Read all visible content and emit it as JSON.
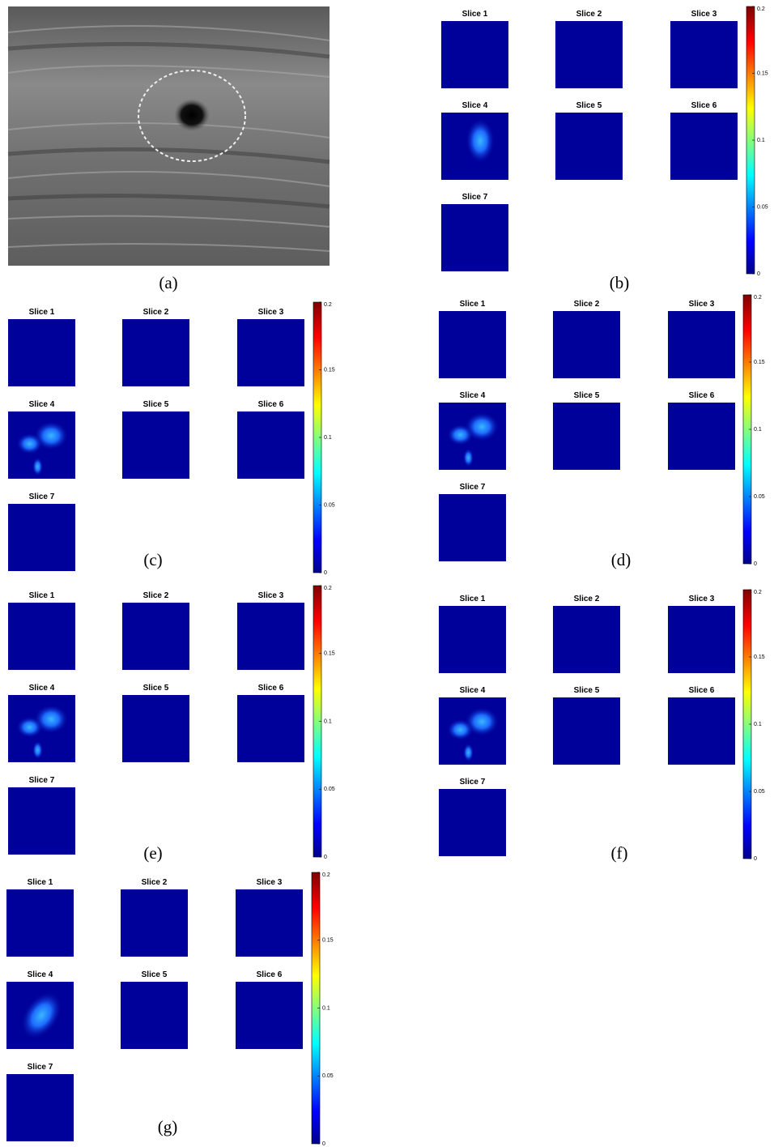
{
  "figure": {
    "panels": [
      {
        "label": "(a)"
      },
      {
        "label": "(b)",
        "slices": [
          "Slice 1",
          "Slice 2",
          "Slice 3",
          "Slice 4",
          "Slice 5",
          "Slice 6",
          "Slice 7"
        ],
        "colorbar": {
          "lim": [
            0,
            0.2
          ],
          "ticks": [
            0,
            0.05,
            0.1,
            0.15,
            0.2
          ]
        }
      },
      {
        "label": "(c)",
        "slices": [
          "Slice 1",
          "Slice 2",
          "Slice 3",
          "Slice 4",
          "Slice 5",
          "Slice 6",
          "Slice 7"
        ],
        "colorbar": {
          "lim": [
            0,
            0.2
          ],
          "ticks": [
            0,
            0.05,
            0.1,
            0.15,
            0.2
          ]
        }
      },
      {
        "label": "(d)",
        "slices": [
          "Slice 1",
          "Slice 2",
          "Slice 3",
          "Slice 4",
          "Slice 5",
          "Slice 6",
          "Slice 7"
        ],
        "colorbar": {
          "lim": [
            0,
            0.2
          ],
          "ticks": [
            0,
            0.05,
            0.1,
            0.15,
            0.2
          ]
        }
      },
      {
        "label": "(e)",
        "slices": [
          "Slice 1",
          "Slice 2",
          "Slice 3",
          "Slice 4",
          "Slice 5",
          "Slice 6",
          "Slice 7"
        ],
        "colorbar": {
          "lim": [
            0,
            0.2
          ],
          "ticks": [
            0,
            0.05,
            0.1,
            0.15,
            0.2
          ]
        }
      },
      {
        "label": "(f)",
        "slices": [
          "Slice 1",
          "Slice 2",
          "Slice 3",
          "Slice 4",
          "Slice 5",
          "Slice 6",
          "Slice 7"
        ],
        "colorbar": {
          "lim": [
            0,
            0.2
          ],
          "ticks": [
            0,
            0.05,
            0.1,
            0.15,
            0.2
          ]
        }
      },
      {
        "label": "(g)",
        "slices": [
          "Slice 1",
          "Slice 2",
          "Slice 3",
          "Slice 4",
          "Slice 5",
          "Slice 6",
          "Slice 7"
        ],
        "colorbar": {
          "lim": [
            0,
            0.2
          ],
          "ticks": [
            0,
            0.05,
            0.1,
            0.15,
            0.2
          ]
        }
      }
    ]
  }
}
